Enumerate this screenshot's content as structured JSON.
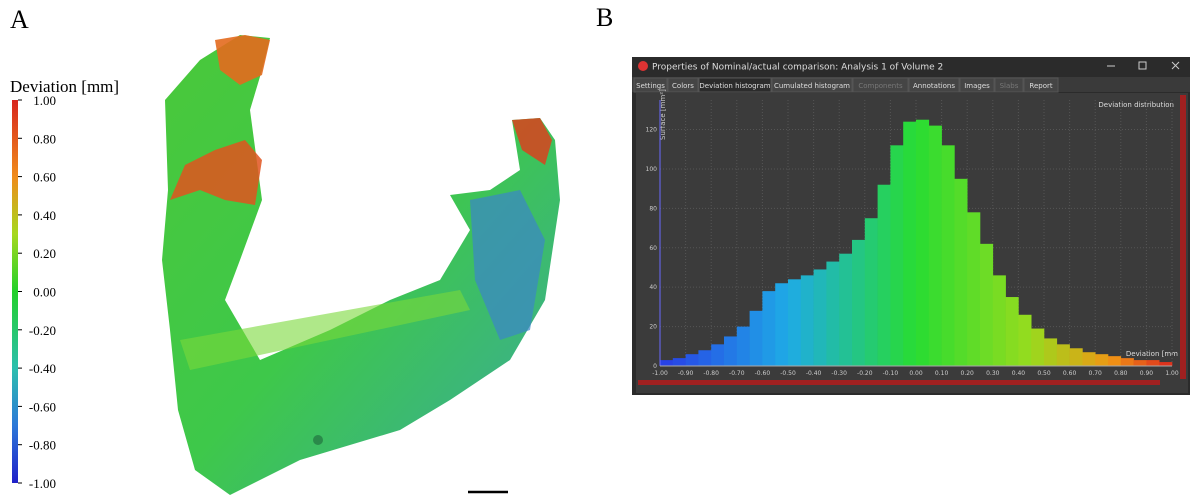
{
  "panel_a": {
    "label": "A",
    "colorbar": {
      "title": "Deviation [mm]",
      "ticks": [
        {
          "value": 1,
          "label": "1.00"
        },
        {
          "value": 0.8,
          "label": "0.80"
        },
        {
          "value": 0.6,
          "label": "0.60"
        },
        {
          "value": 0.4,
          "label": "0.40"
        },
        {
          "value": 0.2,
          "label": "0.20"
        },
        {
          "value": 0,
          "label": "0.00"
        },
        {
          "value": -0.2,
          "label": "-0.20"
        },
        {
          "value": -0.4,
          "label": "-0.40"
        },
        {
          "value": -0.6,
          "label": "-0.60"
        },
        {
          "value": -0.8,
          "label": "-0.80"
        },
        {
          "value": -1,
          "label": "-1.00"
        }
      ],
      "lim": [
        -1,
        1
      ]
    }
  },
  "panel_b": {
    "label": "B",
    "window_title": "Properties of Nominal/actual comparison: Analysis 1 of Volume 2",
    "tabs": [
      "Settings",
      "Colors",
      "Deviation histogram",
      "Cumulated histogram",
      "Components",
      "Annotations",
      "Images",
      "Slabs",
      "Report"
    ]
  },
  "chart_data": {
    "type": "histogram",
    "legend": "Deviation distribution",
    "y_label": "Surface [mm²]",
    "x_label": "Deviation [mm",
    "bins": [
      -1,
      -0.95,
      -0.9,
      -0.85,
      -0.8,
      -0.75,
      -0.7,
      -0.65,
      -0.6,
      -0.55,
      -0.5,
      -0.45,
      -0.4,
      -0.35,
      -0.3,
      -0.25,
      -0.2,
      -0.15,
      -0.1,
      -0.05,
      0,
      0.05,
      0.1,
      0.15,
      0.2,
      0.25,
      0.3,
      0.35,
      0.4,
      0.45,
      0.5,
      0.55,
      0.6,
      0.65,
      0.7,
      0.75,
      0.8,
      0.85,
      0.9,
      0.95,
      1
    ],
    "values": [
      3,
      4,
      6,
      8,
      11,
      15,
      20,
      28,
      38,
      42,
      44,
      46,
      49,
      53,
      57,
      64,
      75,
      92,
      112,
      124,
      125,
      122,
      112,
      95,
      78,
      62,
      46,
      35,
      26,
      19,
      14,
      11,
      9,
      7,
      6,
      5,
      4,
      3,
      3,
      2
    ],
    "xlim": [
      -1,
      1
    ],
    "ylim": [
      0,
      135
    ],
    "xticks": [
      {
        "value": -1,
        "label": "-1.00"
      },
      {
        "value": -0.9,
        "label": "-0.90"
      },
      {
        "value": -0.8,
        "label": "-0.80"
      },
      {
        "value": -0.7,
        "label": "-0.70"
      },
      {
        "value": -0.6,
        "label": "-0.60"
      },
      {
        "value": -0.5,
        "label": "-0.50"
      },
      {
        "value": -0.4,
        "label": "-0.40"
      },
      {
        "value": -0.3,
        "label": "-0.30"
      },
      {
        "value": -0.2,
        "label": "-0.20"
      },
      {
        "value": -0.1,
        "label": "-0.10"
      },
      {
        "value": 0,
        "label": "0.00"
      },
      {
        "value": 0.1,
        "label": "0.10"
      },
      {
        "value": 0.2,
        "label": "0.20"
      },
      {
        "value": 0.3,
        "label": "0.30"
      },
      {
        "value": 0.4,
        "label": "0.40"
      },
      {
        "value": 0.5,
        "label": "0.50"
      },
      {
        "value": 0.6,
        "label": "0.60"
      },
      {
        "value": 0.7,
        "label": "0.70"
      },
      {
        "value": 0.8,
        "label": "0.80"
      },
      {
        "value": 0.9,
        "label": "0.90"
      },
      {
        "value": 1,
        "label": "1.00"
      }
    ],
    "yticks": [
      0,
      20,
      40,
      60,
      80,
      100,
      120
    ],
    "grid": true
  }
}
